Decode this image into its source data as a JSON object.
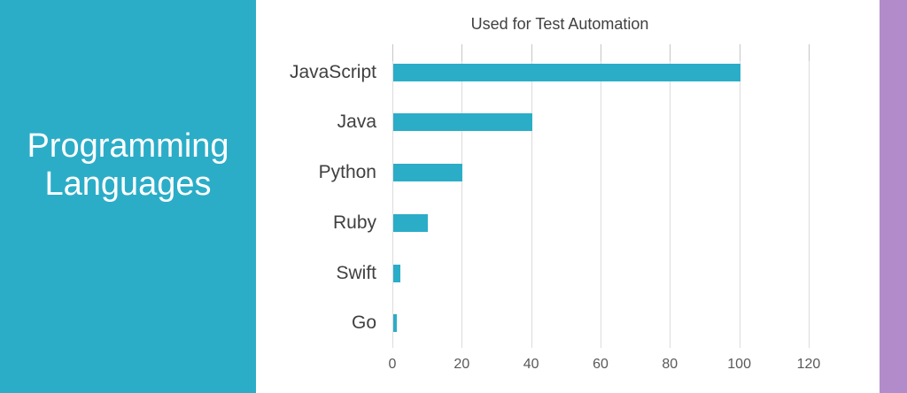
{
  "left_panel": {
    "title_line1": "Programming",
    "title_line2": "Languages",
    "bg_color": "#2BADC8",
    "text_color": "#FFFFFF"
  },
  "accent_strip": {
    "color": "#B28CCA"
  },
  "chart_data": {
    "type": "bar",
    "orientation": "horizontal",
    "title": "Used for Test Automation",
    "categories": [
      "JavaScript",
      "Java",
      "Python",
      "Ruby",
      "Swift",
      "Go"
    ],
    "values": [
      100,
      40,
      20,
      10,
      2,
      1
    ],
    "xlabel": "",
    "ylabel": "",
    "xlim": [
      0,
      130
    ],
    "xticks": [
      0,
      20,
      40,
      60,
      80,
      100,
      120
    ],
    "grid": true,
    "legend": false,
    "bar_color": "#2BADC8",
    "gridline_color": "#DCDCDC",
    "top_tick_color": "#C6C6C6",
    "title_color": "#404040",
    "category_label_color": "#404040",
    "tick_label_color": "#595959"
  }
}
